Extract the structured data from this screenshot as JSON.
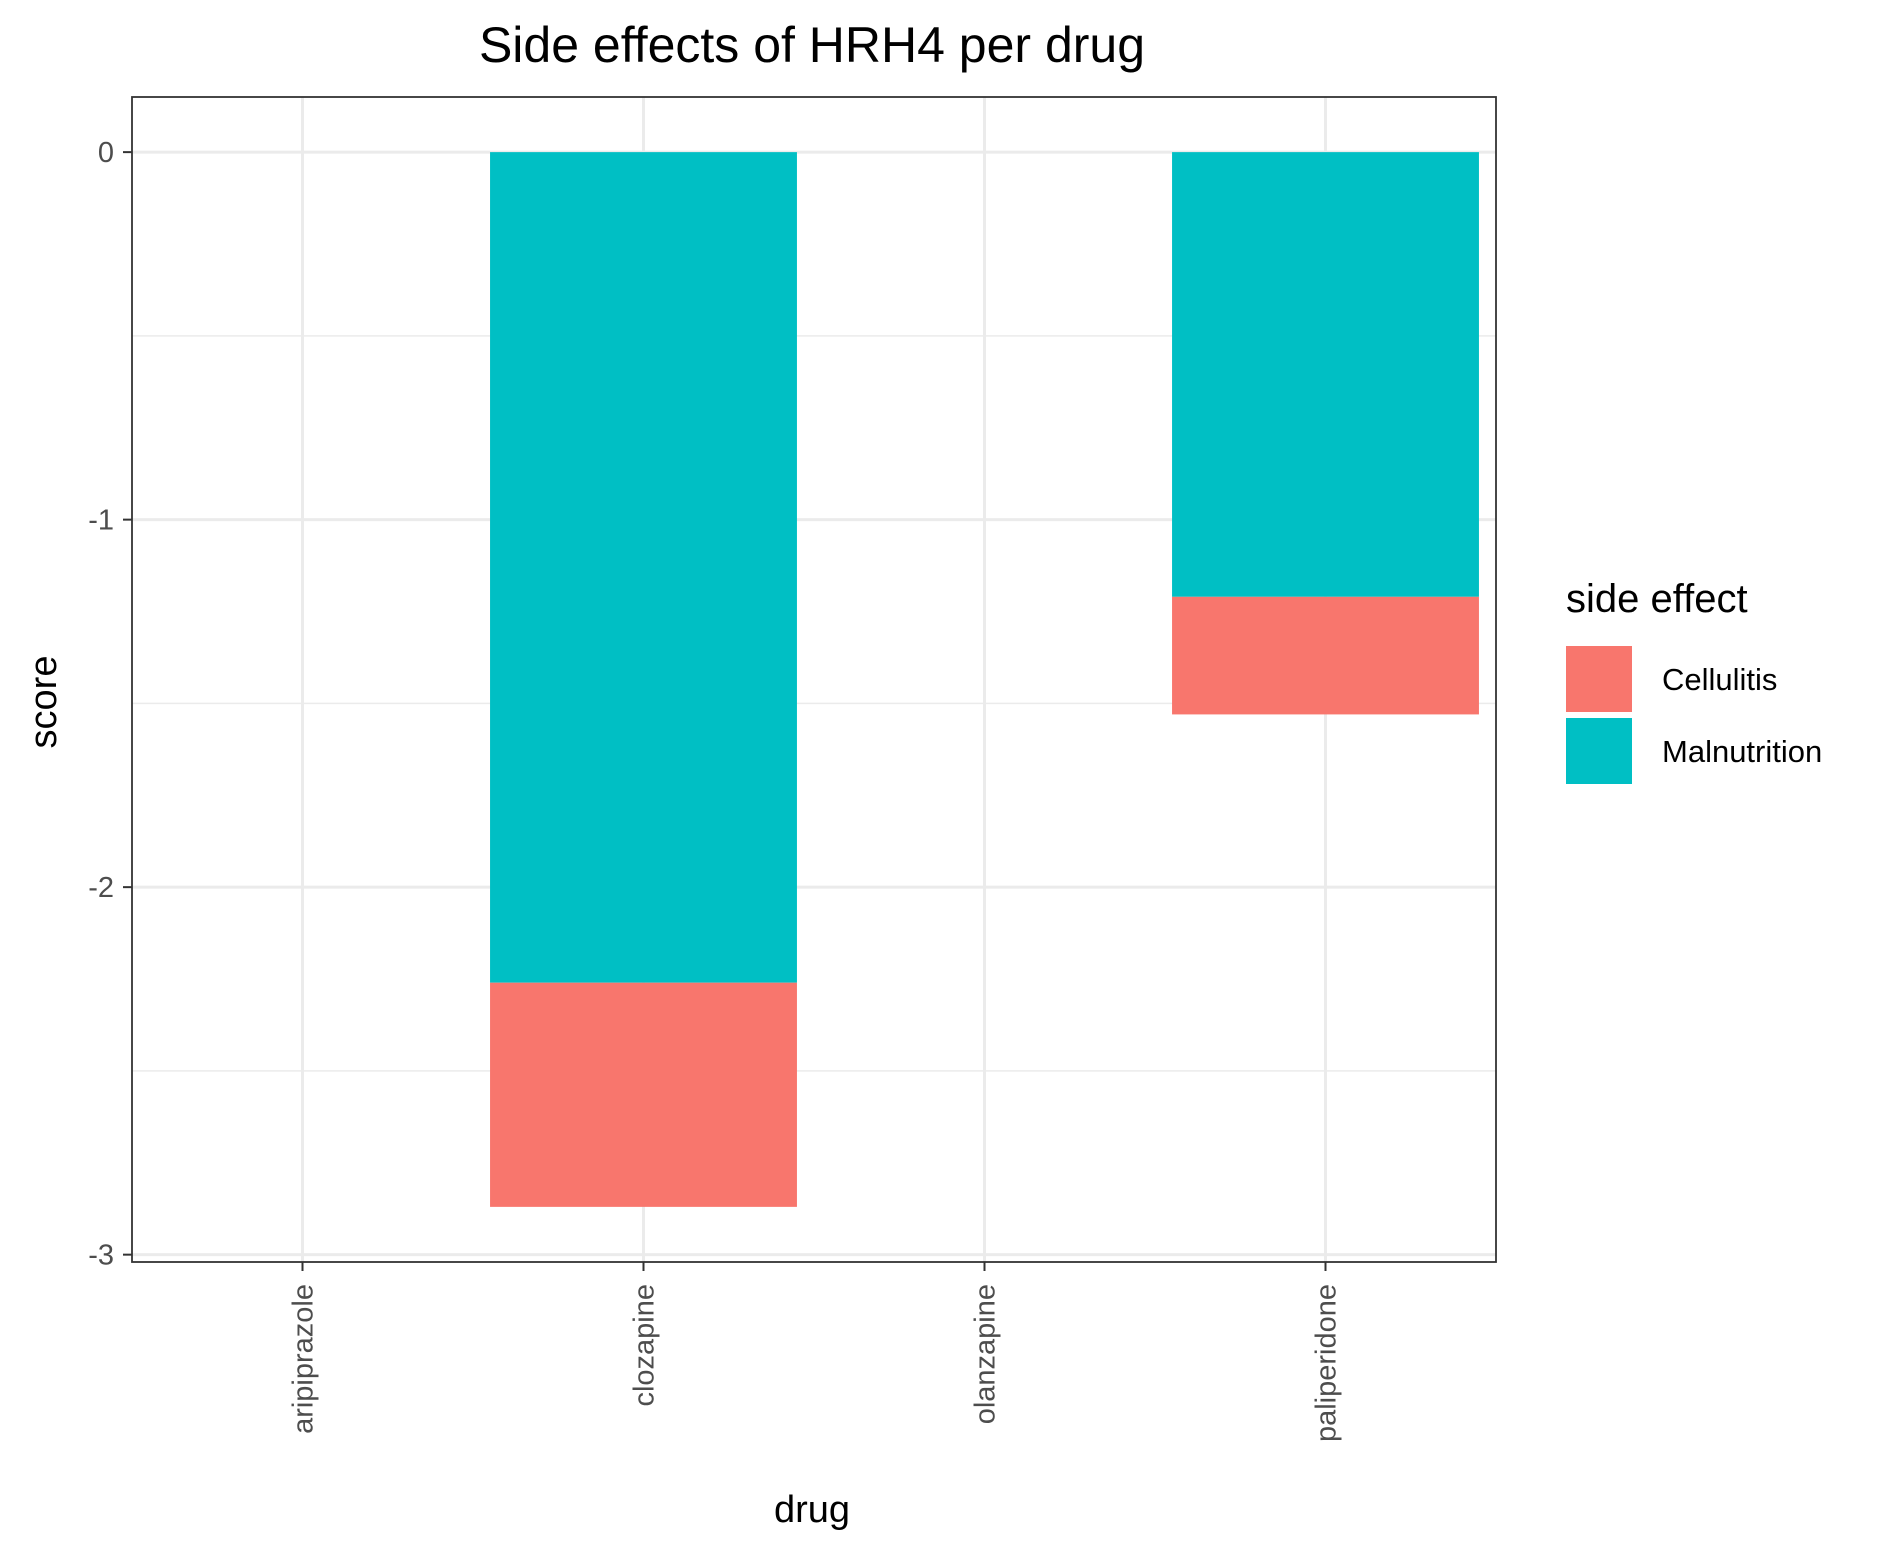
{
  "chart_data": {
    "type": "bar",
    "stacked": true,
    "title": "Side effects of HRH4 per drug",
    "xlabel": "drug",
    "ylabel": "score",
    "categories": [
      "aripiprazole",
      "clozapine",
      "olanzapine",
      "paliperidone"
    ],
    "series": [
      {
        "name": "Malnutrition",
        "color": "#00BFC4",
        "values": [
          0,
          -2.26,
          0,
          -1.21
        ]
      },
      {
        "name": "Cellulitis",
        "color": "#F8766D",
        "values": [
          0,
          -0.61,
          0,
          -0.32
        ]
      }
    ],
    "ylim": [
      -3,
      0
    ],
    "yticks": [
      0,
      -1,
      -2,
      -3
    ],
    "yticklabels": [
      "0",
      "-1",
      "-2",
      "-3"
    ],
    "grid": true,
    "legend": {
      "title": "side effect",
      "position": "right",
      "entries": [
        {
          "label": "Cellulitis",
          "color": "#F8766D"
        },
        {
          "label": "Malnutrition",
          "color": "#00BFC4"
        }
      ]
    }
  }
}
